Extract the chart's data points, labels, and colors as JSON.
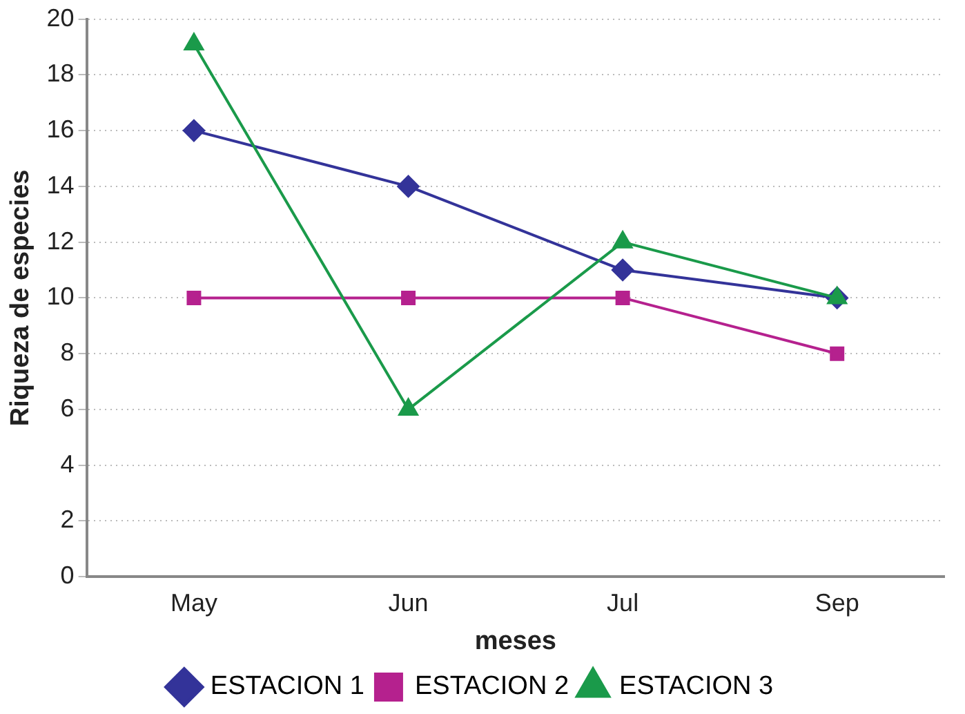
{
  "chart_data": {
    "type": "line",
    "xlabel": "meses",
    "ylabel": "Riqueza de especies",
    "categories": [
      "May",
      "Jun",
      "Jul",
      "Sep"
    ],
    "series": [
      {
        "name": "ESTACION 1",
        "color": "#333399",
        "values": [
          16,
          14,
          11,
          10
        ],
        "marker": "diamond"
      },
      {
        "name": "ESTACION 2",
        "color": "#b5218e",
        "values": [
          10,
          10,
          10,
          8
        ],
        "marker": "square"
      },
      {
        "name": "ESTACION 3",
        "color": "#1a9a4a",
        "values": [
          19.1,
          6,
          12,
          10
        ],
        "marker": "triangle"
      }
    ],
    "ylim": [
      0,
      20
    ],
    "yticks": [
      0,
      2,
      4,
      6,
      8,
      10,
      12,
      14,
      16,
      18,
      20
    ],
    "grid": "y",
    "legend": "bottom",
    "line_style": "solid"
  }
}
